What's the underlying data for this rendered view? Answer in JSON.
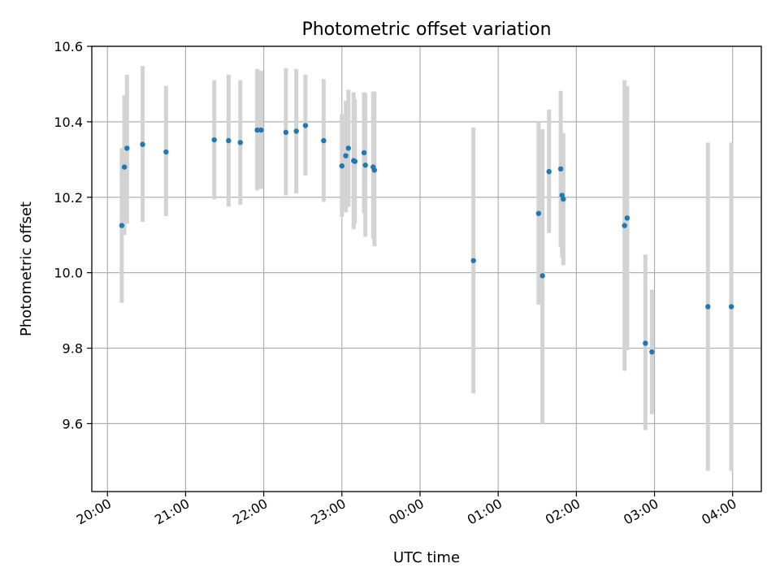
{
  "chart_data": {
    "type": "scatter",
    "title": "Photometric offset variation",
    "xlabel": "UTC time",
    "ylabel": "Photometric offset",
    "xlim": [
      "19:48",
      "04:22"
    ],
    "ylim": [
      9.42,
      10.6
    ],
    "x_ticks": [
      "20:00",
      "21:00",
      "22:00",
      "23:00",
      "00:00",
      "01:00",
      "02:00",
      "03:00",
      "04:00"
    ],
    "y_ticks": [
      "9.6",
      "9.8",
      "10.0",
      "10.2",
      "10.4",
      "10.6"
    ],
    "grid": true,
    "point_color": "#1f77b4",
    "errorbar_color": "#d3d3d3",
    "points": [
      {
        "t": "20:11",
        "y": 10.125,
        "lo": 9.92,
        "hi": 10.33
      },
      {
        "t": "20:13",
        "y": 10.28,
        "lo": 10.1,
        "hi": 10.47
      },
      {
        "t": "20:15",
        "y": 10.33,
        "lo": 10.13,
        "hi": 10.525
      },
      {
        "t": "20:27",
        "y": 10.34,
        "lo": 10.135,
        "hi": 10.548
      },
      {
        "t": "20:45",
        "y": 10.32,
        "lo": 10.15,
        "hi": 10.495
      },
      {
        "t": "21:22",
        "y": 10.352,
        "lo": 10.195,
        "hi": 10.51
      },
      {
        "t": "21:33",
        "y": 10.35,
        "lo": 10.175,
        "hi": 10.525
      },
      {
        "t": "21:42",
        "y": 10.345,
        "lo": 10.18,
        "hi": 10.51
      },
      {
        "t": "21:55",
        "y": 10.378,
        "lo": 10.218,
        "hi": 10.54
      },
      {
        "t": "21:58",
        "y": 10.378,
        "lo": 10.222,
        "hi": 10.535
      },
      {
        "t": "22:17",
        "y": 10.372,
        "lo": 10.205,
        "hi": 10.542
      },
      {
        "t": "22:25",
        "y": 10.375,
        "lo": 10.21,
        "hi": 10.54
      },
      {
        "t": "22:32",
        "y": 10.39,
        "lo": 10.258,
        "hi": 10.525
      },
      {
        "t": "22:46",
        "y": 10.35,
        "lo": 10.188,
        "hi": 10.513
      },
      {
        "t": "23:00",
        "y": 10.283,
        "lo": 10.148,
        "hi": 10.42
      },
      {
        "t": "23:03",
        "y": 10.31,
        "lo": 10.16,
        "hi": 10.455
      },
      {
        "t": "23:05",
        "y": 10.33,
        "lo": 10.175,
        "hi": 10.485
      },
      {
        "t": "23:09",
        "y": 10.297,
        "lo": 10.115,
        "hi": 10.478
      },
      {
        "t": "23:10",
        "y": 10.295,
        "lo": 10.13,
        "hi": 10.46
      },
      {
        "t": "23:17",
        "y": 10.318,
        "lo": 10.158,
        "hi": 10.478
      },
      {
        "t": "23:18",
        "y": 10.285,
        "lo": 10.095,
        "hi": 10.475
      },
      {
        "t": "23:24",
        "y": 10.28,
        "lo": 10.09,
        "hi": 10.48
      },
      {
        "t": "23:25",
        "y": 10.272,
        "lo": 10.07,
        "hi": 10.48
      },
      {
        "t": "00:41",
        "y": 10.032,
        "lo": 9.68,
        "hi": 10.385
      },
      {
        "t": "01:31",
        "y": 10.157,
        "lo": 9.915,
        "hi": 10.4
      },
      {
        "t": "01:34",
        "y": 9.992,
        "lo": 9.6,
        "hi": 10.38
      },
      {
        "t": "01:39",
        "y": 10.268,
        "lo": 10.105,
        "hi": 10.432
      },
      {
        "t": "01:48",
        "y": 10.275,
        "lo": 10.068,
        "hi": 10.482
      },
      {
        "t": "01:49",
        "y": 10.205,
        "lo": 10.04,
        "hi": 10.37
      },
      {
        "t": "01:50",
        "y": 10.195,
        "lo": 10.02,
        "hi": 10.37
      },
      {
        "t": "02:37",
        "y": 10.125,
        "lo": 9.74,
        "hi": 10.51
      },
      {
        "t": "02:39",
        "y": 10.145,
        "lo": 9.795,
        "hi": 10.495
      },
      {
        "t": "02:53",
        "y": 9.813,
        "lo": 9.583,
        "hi": 10.048
      },
      {
        "t": "02:58",
        "y": 9.79,
        "lo": 9.625,
        "hi": 9.955
      },
      {
        "t": "03:41",
        "y": 9.91,
        "lo": 9.475,
        "hi": 10.345
      },
      {
        "t": "03:59",
        "y": 9.91,
        "lo": 9.475,
        "hi": 10.345
      }
    ]
  }
}
